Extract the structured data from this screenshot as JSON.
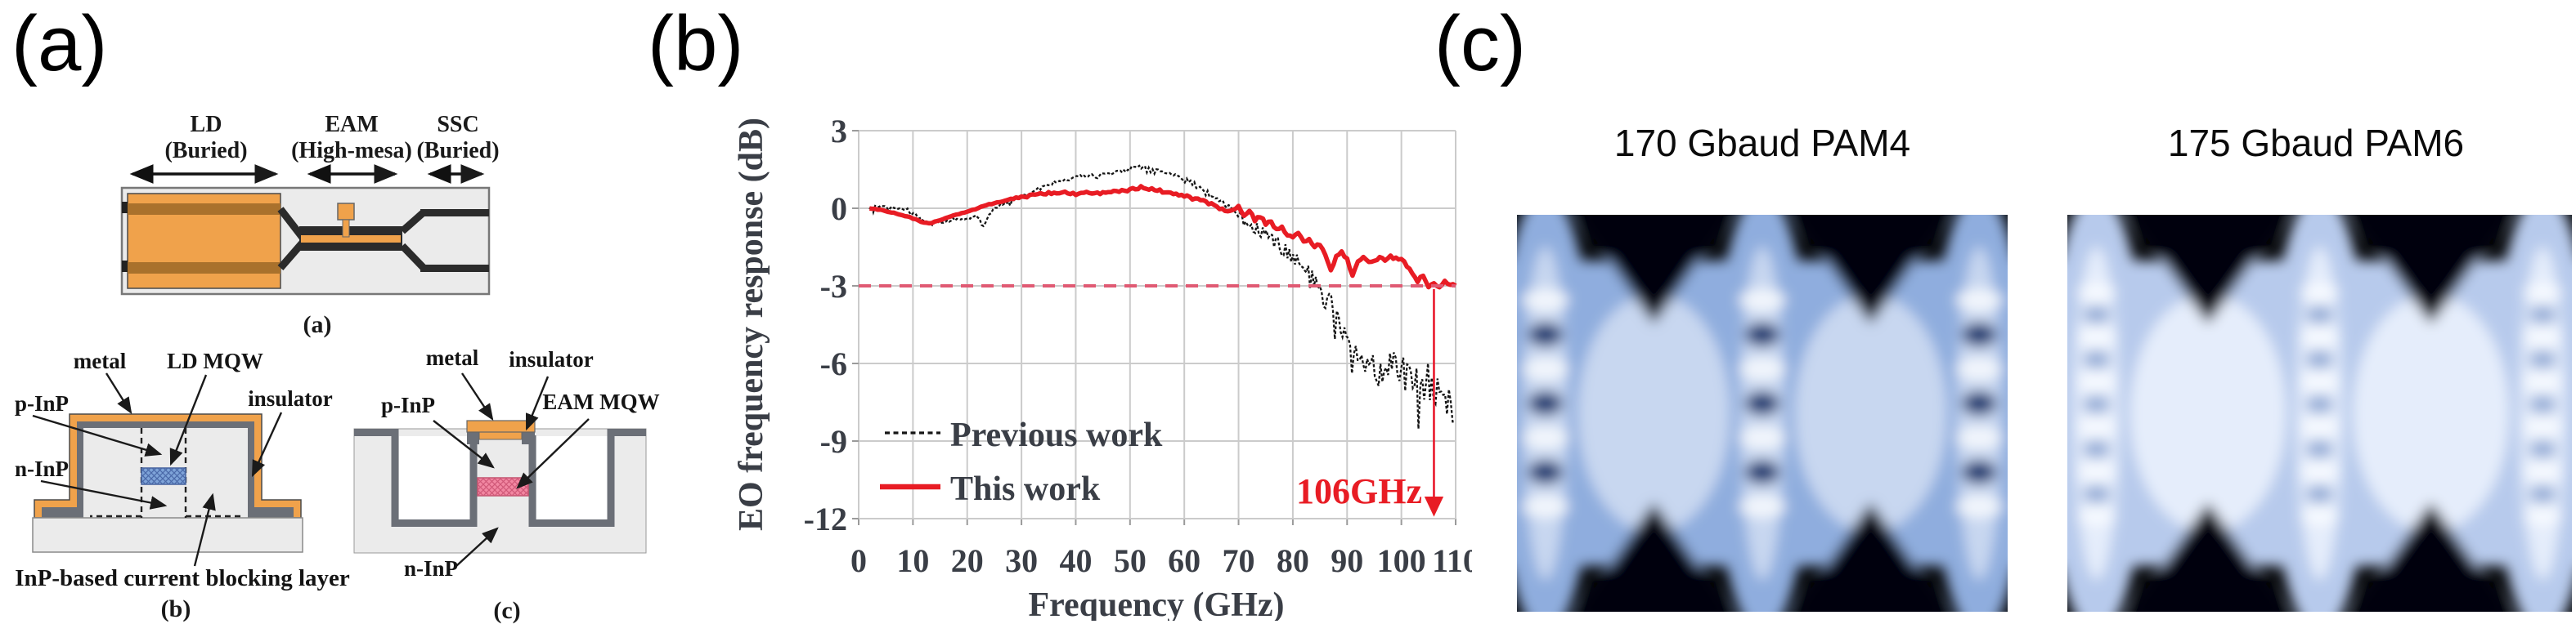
{
  "panels": {
    "a": "(a)",
    "b": "(b)",
    "c": "(c)"
  },
  "panel_a": {
    "top_view": {
      "regions": [
        {
          "name": "LD",
          "type": "(Buried)"
        },
        {
          "name": "EAM",
          "type": "(High-mesa)"
        },
        {
          "name": "SSC",
          "type": "(Buried)"
        }
      ],
      "caption": "(a)"
    },
    "cross_section_ld": {
      "labels": {
        "metal": "metal",
        "mqw": "LD MQW",
        "p_inp": "p-InP",
        "insulator": "insulator",
        "n_inp": "n-InP",
        "blocking_layer": "InP-based current blocking layer"
      },
      "caption": "(b)"
    },
    "cross_section_eam": {
      "labels": {
        "metal": "metal",
        "insulator": "insulator",
        "p_inp": "p-InP",
        "mqw": "EAM MQW",
        "n_inp": "n-InP"
      },
      "caption": "(c)"
    },
    "colors": {
      "metal_orange": "#F0A24B",
      "metal_stripe": "#A9712C",
      "insulator_gray": "#6B6F77",
      "body_gray": "#EBEBEB",
      "ld_mqw_blue": "#7EA3D8",
      "eam_mqw_pink": "#F287A2"
    }
  },
  "chart_data": {
    "type": "line",
    "title": "",
    "xlabel": "Frequency (GHz)",
    "ylabel": "EO frequency response (dB)",
    "xlim": [
      0,
      110
    ],
    "ylim": [
      -12,
      3
    ],
    "xticks": [
      0,
      10,
      20,
      30,
      40,
      50,
      60,
      70,
      80,
      90,
      100,
      110
    ],
    "yticks": [
      3,
      0,
      -3,
      -6,
      -9,
      -12
    ],
    "grid": true,
    "legend_position": "lower-left",
    "annotations": [
      {
        "type": "hline",
        "y": -3,
        "style": "dashed",
        "color": "#E05A73"
      },
      {
        "type": "vline-arrow",
        "x": 106,
        "from_y": -3,
        "to_y": -11.8,
        "color": "#E8192C",
        "label": "106GHz"
      }
    ],
    "series": [
      {
        "name": "Previous work",
        "style": "dashed",
        "color": "#151515",
        "x": [
          2,
          4,
          6,
          8,
          10,
          12,
          13,
          15,
          18,
          20,
          22,
          23,
          24,
          26,
          28,
          30,
          32,
          34,
          36,
          38,
          40,
          42,
          44,
          46,
          48,
          50,
          52,
          54,
          56,
          58,
          60,
          62,
          64,
          66,
          68,
          70,
          72,
          74,
          76,
          78,
          80,
          82,
          84,
          86,
          88,
          90,
          92,
          93,
          94,
          95,
          96,
          97,
          98,
          99,
          100,
          101,
          102,
          103,
          104,
          105,
          106,
          107,
          108,
          109,
          110
        ],
        "y": [
          0,
          0.1,
          0.05,
          0,
          -0.15,
          -0.5,
          -0.6,
          -0.55,
          -0.4,
          -0.35,
          -0.3,
          -0.75,
          -0.2,
          0.1,
          0.3,
          0.5,
          0.6,
          0.85,
          1.0,
          1.1,
          1.2,
          1.25,
          1.3,
          1.35,
          1.4,
          1.5,
          1.55,
          1.45,
          1.4,
          1.35,
          1.1,
          0.9,
          0.6,
          0.35,
          0.1,
          -0.25,
          -0.6,
          -0.95,
          -1.25,
          -1.55,
          -1.9,
          -2.2,
          -2.8,
          -3.4,
          -4.1,
          -5.0,
          -5.8,
          -6.2,
          -5.8,
          -6.1,
          -6.4,
          -5.9,
          -6.3,
          -6.0,
          -6.3,
          -6.6,
          -6.1,
          -6.5,
          -7.0,
          -6.6,
          -7.4,
          -7.0,
          -7.8,
          -7.4,
          -8.6
        ]
      },
      {
        "name": "This work",
        "style": "solid",
        "color": "#E81C24",
        "x": [
          2,
          4,
          6,
          8,
          10,
          12,
          13,
          15,
          18,
          20,
          23,
          26,
          29,
          32,
          35,
          38,
          40,
          42,
          45,
          48,
          50,
          52,
          54,
          56,
          58,
          60,
          62,
          64,
          65,
          66,
          68,
          70,
          71,
          72,
          73,
          74,
          75,
          76,
          77,
          78,
          79,
          80,
          81,
          82,
          83,
          84,
          85,
          86,
          87,
          88,
          89,
          90,
          91,
          92,
          93,
          94,
          95,
          96,
          97,
          98,
          99,
          100,
          101,
          102,
          103,
          104,
          105,
          106,
          107,
          108,
          109,
          110
        ],
        "y": [
          0,
          -0.05,
          -0.15,
          -0.25,
          -0.4,
          -0.55,
          -0.6,
          -0.45,
          -0.25,
          -0.15,
          0.1,
          0.25,
          0.4,
          0.5,
          0.6,
          0.6,
          0.55,
          0.6,
          0.6,
          0.65,
          0.7,
          0.8,
          0.75,
          0.65,
          0.6,
          0.5,
          0.35,
          0.25,
          0.15,
          0.05,
          -0.1,
          0.05,
          -0.25,
          -0.1,
          -0.45,
          -0.3,
          -0.6,
          -0.5,
          -0.85,
          -0.7,
          -1.05,
          -1.1,
          -0.9,
          -1.3,
          -1.2,
          -1.5,
          -1.4,
          -1.8,
          -2.35,
          -1.9,
          -1.7,
          -1.95,
          -2.6,
          -2.05,
          -1.9,
          -2.1,
          -2.0,
          -1.9,
          -2.05,
          -1.85,
          -1.95,
          -2.0,
          -2.2,
          -2.5,
          -2.8,
          -2.6,
          -3.0,
          -2.9,
          -3.1,
          -2.75,
          -3.0,
          -2.95
        ]
      }
    ]
  },
  "panel_c": {
    "eye_diagrams": [
      {
        "title": "170 Gbaud PAM4",
        "modulation": "PAM4",
        "levels": 4,
        "eyes_open": 3,
        "palette": {
          "bg": "#050608",
          "haze": "#8FADDE",
          "haze_bright": "#C8D7F0",
          "rail": "#F2F6FC",
          "eye_dark": "#1C3A72"
        }
      },
      {
        "title": "175 Gbaud PAM6",
        "modulation": "PAM6",
        "levels": 6,
        "eyes_open": 5,
        "palette": {
          "bg": "#050608",
          "haze": "#B7CAEC",
          "haze_bright": "#E5EDFB",
          "rail": "#F7FAFF",
          "eye_dark": "#93ABD6"
        }
      }
    ]
  }
}
